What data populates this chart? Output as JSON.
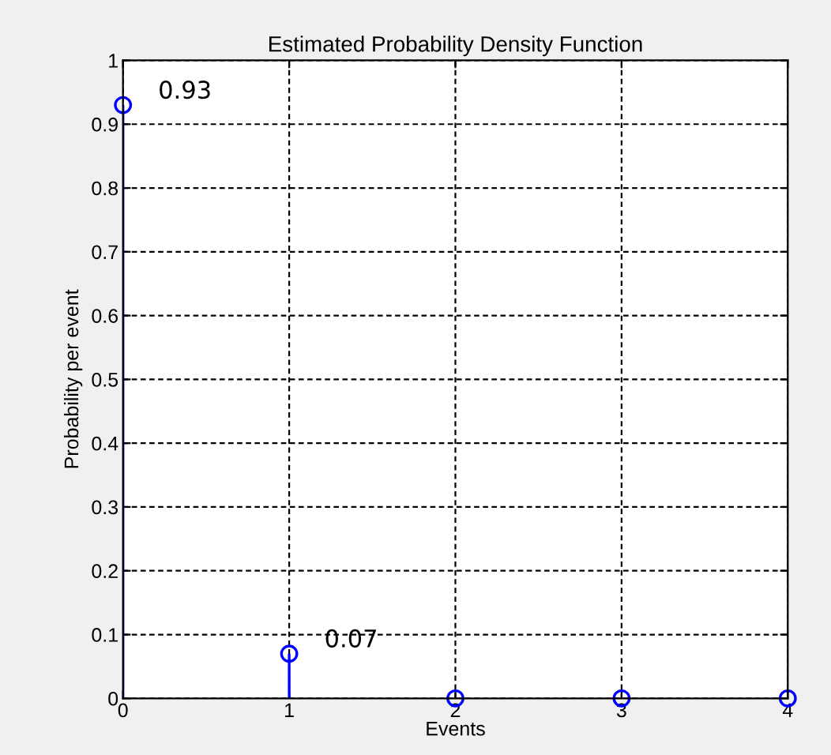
{
  "chart_data": {
    "type": "lollipop",
    "title": "Estimated Probability Density Function",
    "xlabel": "Events",
    "ylabel": "Probability per event",
    "x": [
      0,
      1,
      2,
      3,
      4
    ],
    "series": [
      {
        "color": "#0000ff",
        "values": [
          0.93,
          0.07,
          0,
          0,
          0
        ],
        "value_labels": [
          "0.93",
          "0.07",
          null,
          null,
          null
        ]
      }
    ],
    "xlim": [
      0,
      4
    ],
    "xticks": [
      0,
      1,
      2,
      3,
      4
    ],
    "ylim": [
      0,
      1
    ],
    "yticks": [
      0,
      0.1,
      0.2,
      0.3,
      0.4,
      0.5,
      0.6,
      0.7,
      0.8,
      0.9,
      1
    ],
    "grid": true,
    "marker": "circle"
  }
}
